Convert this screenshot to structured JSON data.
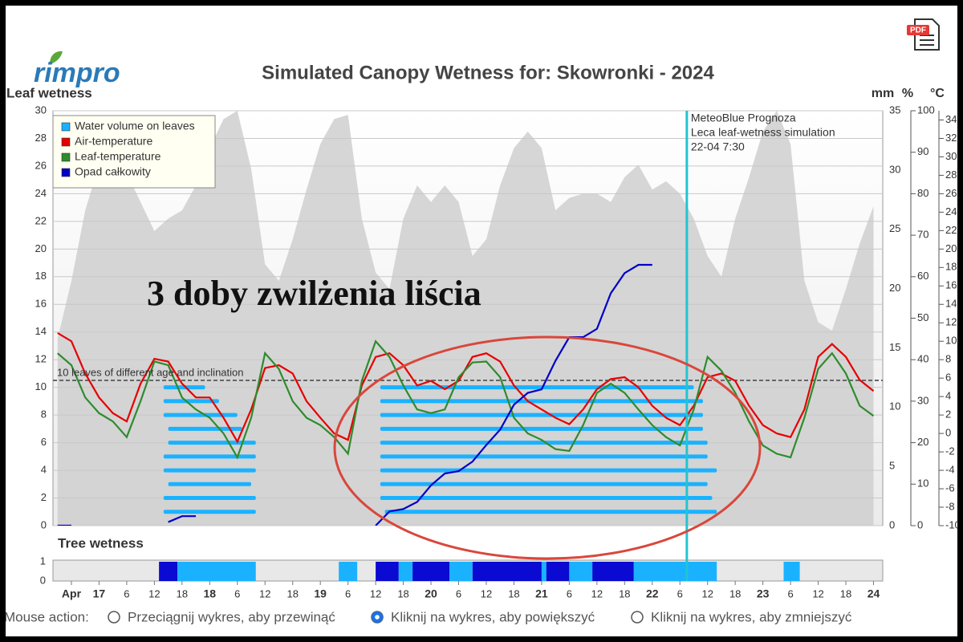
{
  "logo": "rimpro",
  "pdf_icon": "PDF",
  "chart_data": {
    "type": "line",
    "title": "Simulated Canopy Wetness for:   Skowronki - 2024",
    "y_label": "Leaf wetness",
    "y2_label": "mm",
    "y3_label": "%",
    "y4_label": "°C",
    "xlim": [
      -10,
      170
    ],
    "xticks": [
      {
        "value": -6,
        "label": "Apr"
      },
      {
        "value": 0,
        "label": "17"
      },
      6,
      12,
      18,
      {
        "value": 24,
        "label": "18"
      },
      {
        "value": 30,
        "label": "6"
      },
      {
        "value": 36,
        "label": "12"
      },
      {
        "value": 42,
        "label": "18"
      },
      {
        "value": 48,
        "label": "19"
      },
      {
        "value": 54,
        "label": "6"
      },
      {
        "value": 60,
        "label": "12"
      },
      {
        "value": 66,
        "label": "18"
      },
      {
        "value": 72,
        "label": "20"
      },
      {
        "value": 78,
        "label": "6"
      },
      {
        "value": 84,
        "label": "12"
      },
      {
        "value": 90,
        "label": "18"
      },
      {
        "value": 96,
        "label": "21"
      },
      {
        "value": 102,
        "label": "6"
      },
      {
        "value": 108,
        "label": "12"
      },
      {
        "value": 114,
        "label": "18"
      },
      {
        "value": 120,
        "label": "22"
      },
      {
        "value": 126,
        "label": "6"
      },
      {
        "value": 132,
        "label": "12"
      },
      {
        "value": 138,
        "label": "18"
      },
      {
        "value": 144,
        "label": "23"
      },
      {
        "value": 150,
        "label": "6"
      },
      {
        "value": 156,
        "label": "12"
      },
      {
        "value": 162,
        "label": "18"
      },
      {
        "value": 168,
        "label": "24"
      }
    ],
    "ylim": [
      0,
      30
    ],
    "yticks": [
      0,
      2,
      4,
      6,
      8,
      10,
      12,
      14,
      16,
      18,
      20,
      22,
      24,
      26,
      28,
      30
    ],
    "y2lim": [
      0,
      35
    ],
    "y2ticks": [
      0,
      5,
      10,
      15,
      20,
      25,
      30,
      35
    ],
    "y3lim": [
      0,
      100
    ],
    "y3ticks": [
      0,
      10,
      20,
      30,
      40,
      50,
      60,
      70,
      80,
      90,
      100
    ],
    "y4lim": [
      -10,
      35
    ],
    "y4ticks": [
      -10,
      -8,
      -6,
      -4,
      -2,
      0,
      2,
      4,
      6,
      8,
      10,
      12,
      14,
      16,
      18,
      20,
      22,
      24,
      26,
      28,
      30,
      32,
      34
    ],
    "grid": true,
    "legend": "top-left",
    "x": [
      -9,
      -6,
      -3,
      0,
      3,
      6,
      9,
      12,
      15,
      18,
      21,
      24,
      27,
      30,
      33,
      36,
      39,
      42,
      45,
      48,
      51,
      54,
      57,
      60,
      63,
      66,
      69,
      72,
      75,
      78,
      81,
      84,
      87,
      90,
      93,
      96,
      99,
      102,
      105,
      108,
      111,
      114,
      117,
      120,
      123,
      126,
      129,
      132,
      135,
      138,
      141,
      144,
      147,
      150,
      153,
      156,
      159,
      162,
      165,
      168
    ],
    "humidity": {
      "color": "#cfcfcf",
      "axis": "y3",
      "values": [
        45,
        59,
        76,
        87,
        90,
        85,
        78,
        71,
        74,
        76,
        82,
        91,
        98,
        100,
        86,
        63,
        59,
        69,
        81,
        92,
        98,
        99,
        74,
        61,
        57,
        74,
        82,
        78,
        82,
        78,
        65,
        69,
        82,
        91,
        95,
        91,
        76,
        79,
        80,
        80,
        78,
        84,
        87,
        81,
        83,
        80,
        74,
        65,
        60,
        74,
        84,
        95,
        100,
        92,
        59,
        49,
        47,
        57,
        68,
        77
      ]
    },
    "series": [
      {
        "name": "Water volume on leaves",
        "color": "#1ab2ff",
        "type": "leaves",
        "leaves": [
          {
            "level": 1,
            "periods": [
              [
                14,
                34
              ],
              [
                62,
                134
              ]
            ]
          },
          {
            "level": 2,
            "periods": [
              [
                14,
                34
              ],
              [
                61,
                133
              ]
            ]
          },
          {
            "level": 3,
            "periods": [
              [
                15,
                33
              ],
              [
                61,
                132
              ]
            ]
          },
          {
            "level": 4,
            "periods": [
              [
                14,
                34
              ],
              [
                61,
                134
              ]
            ]
          },
          {
            "level": 5,
            "periods": [
              [
                14,
                34
              ],
              [
                61,
                132
              ]
            ]
          },
          {
            "level": 6,
            "periods": [
              [
                15,
                34
              ],
              [
                61,
                132
              ]
            ]
          },
          {
            "level": 7,
            "periods": [
              [
                15,
                31
              ],
              [
                61,
                131
              ]
            ]
          },
          {
            "level": 8,
            "periods": [
              [
                14,
                30
              ],
              [
                61,
                131
              ]
            ]
          },
          {
            "level": 9,
            "periods": [
              [
                14,
                26
              ],
              [
                61,
                131
              ]
            ]
          },
          {
            "level": 10,
            "periods": [
              [
                14,
                23
              ],
              [
                61,
                129
              ]
            ]
          }
        ]
      },
      {
        "name": "Air-temperature",
        "color": "#e60000",
        "axis": "y4",
        "values": [
          10.9,
          10.0,
          6.5,
          3.9,
          2.2,
          1.3,
          5.4,
          8.1,
          7.8,
          5.4,
          3.9,
          3.9,
          1.7,
          -0.9,
          2.6,
          7.1,
          7.4,
          6.5,
          3.5,
          1.7,
          0.0,
          -0.7,
          5.2,
          8.3,
          8.7,
          7.4,
          5.2,
          5.7,
          4.8,
          5.7,
          8.3,
          8.7,
          7.8,
          5.2,
          3.5,
          2.6,
          1.7,
          1.0,
          2.6,
          4.8,
          5.9,
          6.1,
          5.0,
          3.0,
          1.7,
          0.9,
          3.0,
          6.1,
          6.5,
          5.7,
          3.0,
          0.9,
          0.0,
          -0.4,
          2.6,
          8.3,
          9.7,
          8.3,
          5.8,
          4.6
        ]
      },
      {
        "name": "Leaf-temperature",
        "color": "#2e8b2e",
        "axis": "y4",
        "values": [
          8.7,
          7.4,
          3.9,
          2.2,
          1.3,
          -0.4,
          3.5,
          7.8,
          7.4,
          3.9,
          2.6,
          1.7,
          0.0,
          -2.6,
          1.7,
          8.7,
          7.0,
          3.5,
          1.7,
          0.9,
          -0.4,
          -2.2,
          5.7,
          10.0,
          8.3,
          5.2,
          2.6,
          2.2,
          2.6,
          6.1,
          7.7,
          7.8,
          6.1,
          1.7,
          0.0,
          -0.7,
          -1.7,
          -1.9,
          0.9,
          4.4,
          5.4,
          4.4,
          2.6,
          0.9,
          -0.4,
          -1.3,
          2.6,
          8.3,
          6.8,
          4.4,
          1.3,
          -1.3,
          -2.2,
          -2.6,
          1.7,
          7.0,
          8.7,
          6.5,
          3.0,
          1.9
        ]
      },
      {
        "name": "Opad całkowity",
        "color": "#0000c8",
        "axis": "y2",
        "values": [
          0,
          0,
          null,
          null,
          null,
          null,
          null,
          null,
          0.3,
          0.8,
          0.8,
          null,
          null,
          null,
          null,
          null,
          null,
          null,
          null,
          null,
          null,
          null,
          null,
          0,
          1.2,
          1.4,
          2.0,
          3.4,
          4.4,
          4.6,
          5.4,
          6.8,
          8.1,
          10.2,
          11.2,
          11.5,
          13.9,
          15.9,
          15.9,
          16.6,
          19.6,
          21.3,
          22.0,
          22.0,
          null,
          null,
          null,
          null,
          null,
          null,
          null,
          null,
          null,
          null,
          null,
          null,
          null,
          null,
          null,
          null
        ]
      }
    ],
    "threshold": {
      "value": 10.5,
      "label": "10 leaves of different age and inclination"
    },
    "forecast": {
      "x": 127.5,
      "color": "#22c4d0",
      "lines": [
        "MeteoBlue Prognoza",
        "Leca leaf-wetness simulation",
        "22-04 7:30"
      ]
    },
    "annotation": "3 doby zwilżenia liścia",
    "tree_wetness": {
      "title": "Tree wetness",
      "ylim": [
        0,
        1
      ],
      "yticks": [
        0,
        1
      ],
      "series": [
        {
          "color": "#0a0ad2",
          "periods": [
            [
              13,
              17
            ],
            [
              60,
              65
            ],
            [
              68,
              76
            ],
            [
              81,
              96
            ],
            [
              97,
              102
            ],
            [
              107,
              116
            ]
          ]
        },
        {
          "color": "#1ab2ff",
          "periods": [
            [
              17,
              34
            ],
            [
              52,
              56
            ],
            [
              65,
              68
            ],
            [
              76,
              81
            ],
            [
              96,
              97
            ],
            [
              102,
              107
            ],
            [
              116,
              134
            ],
            [
              148.5,
              152
            ]
          ]
        }
      ]
    }
  },
  "mouse_action": {
    "label": "Mouse action:",
    "options": [
      "Przeciągnij wykres, aby przewinąć",
      "Kliknij na wykres, aby powiększyć",
      "Kliknij na wykres, aby zmniejszyć"
    ],
    "selected": 1
  }
}
